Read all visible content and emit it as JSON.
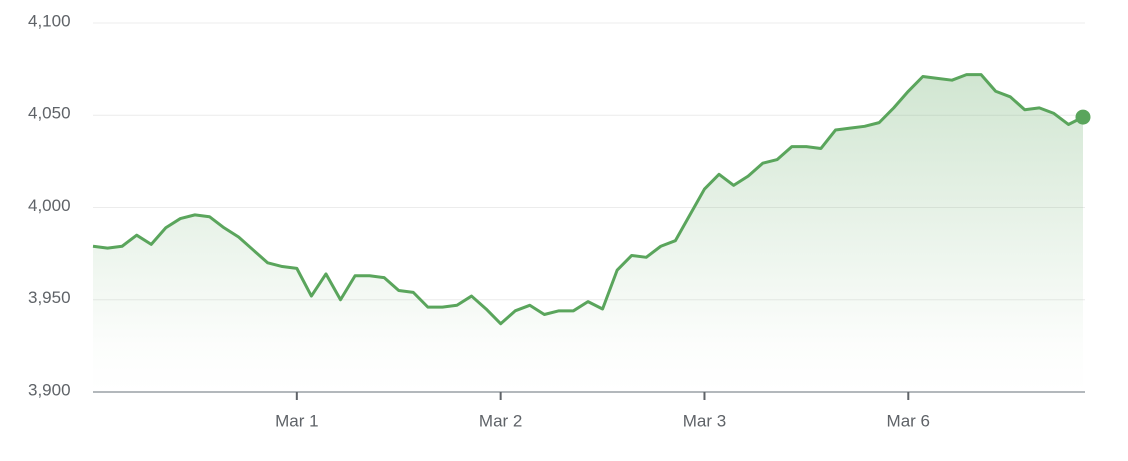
{
  "chart_data": {
    "type": "line",
    "categories": [
      null,
      null,
      null,
      null,
      null,
      null,
      null,
      null,
      null,
      null,
      null,
      null,
      null,
      null,
      "Mar 1",
      null,
      null,
      null,
      null,
      null,
      null,
      null,
      null,
      null,
      null,
      null,
      null,
      null,
      "Mar 2",
      null,
      null,
      null,
      null,
      null,
      null,
      null,
      null,
      null,
      null,
      null,
      null,
      null,
      "Mar 3",
      null,
      null,
      null,
      null,
      null,
      null,
      null,
      null,
      null,
      null,
      null,
      null,
      null,
      "Mar 6",
      null,
      null,
      null,
      null,
      null,
      null,
      null,
      null,
      null,
      null,
      null,
      null
    ],
    "values": [
      3979,
      3978,
      3979,
      3985,
      3980,
      3989,
      3994,
      3996,
      3995,
      3989,
      3984,
      3977,
      3970,
      3968,
      3967,
      3952,
      3964,
      3950,
      3963,
      3963,
      3962,
      3955,
      3954,
      3946,
      3946,
      3947,
      3952,
      3945,
      3937,
      3944,
      3947,
      3942,
      3944,
      3944,
      3949,
      3945,
      3966,
      3974,
      3973,
      3979,
      3982,
      3996,
      4010,
      4018,
      4012,
      4017,
      4024,
      4026,
      4033,
      4033,
      4032,
      4042,
      4043,
      4044,
      4046,
      4054,
      4063,
      4071,
      4070,
      4069,
      4072,
      4072,
      4063,
      4060,
      4053,
      4054,
      4051,
      4045,
      4049
    ],
    "color": "#5aa55c",
    "ylim": [
      3900,
      4100
    ],
    "yticks": [
      {
        "value": 3900,
        "label": "3,900"
      },
      {
        "value": 3950,
        "label": "3,950"
      },
      {
        "value": 4000,
        "label": "4,000"
      },
      {
        "value": 4050,
        "label": "4,050"
      },
      {
        "value": 4100,
        "label": "4,100"
      }
    ],
    "grid": true
  }
}
